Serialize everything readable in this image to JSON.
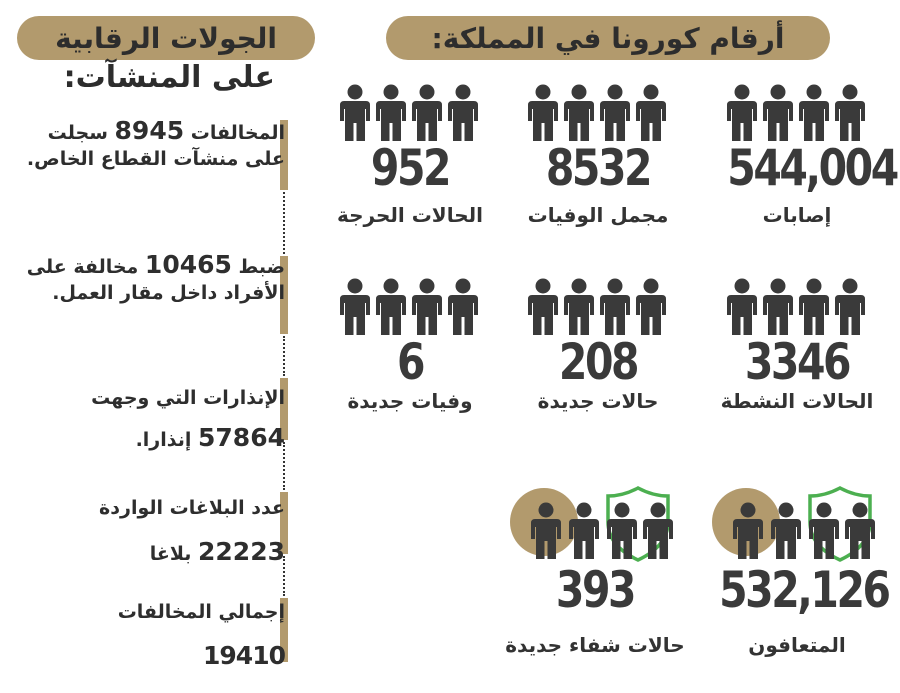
{
  "headers": {
    "right_title": "أرقام كورونا في المملكة:",
    "left_title_line1": "الجولات الرقابية",
    "left_title_line2": "على المنشآت:"
  },
  "stats": [
    {
      "value": "544,004",
      "label": "إصابات"
    },
    {
      "value": "8532",
      "label": "مجمل الوفيات"
    },
    {
      "value": "952",
      "label": "الحالات الحرجة"
    },
    {
      "value": "3346",
      "label": "الحالات النشطة"
    },
    {
      "value": "208",
      "label": "حالات جديدة"
    },
    {
      "value": "6",
      "label": "وفيات جديدة"
    },
    {
      "value": "532,126",
      "label": "المتعافون"
    },
    {
      "value": "393",
      "label": "حالات شفاء جديدة"
    }
  ],
  "inspections": [
    {
      "pre": "المخالفات",
      "num": "8945",
      "post": "سجلت على منشآت القطاع الخاص."
    },
    {
      "pre": "ضبط",
      "num": "10465",
      "post": "مخالفة على الأفراد داخل مقار العمل."
    },
    {
      "pre": "الإنذارات التي وجهت",
      "num": "57864",
      "post": "إنذارا."
    },
    {
      "pre": "عدد البلاغات الواردة",
      "num": "22223",
      "post": "بلاغا"
    },
    {
      "pre": "إجمالي المخالفات",
      "num": "19410",
      "post": ""
    }
  ],
  "colors": {
    "gold": "#b29a6d",
    "dark": "#3a3a3a",
    "green": "#4caf50"
  },
  "icons": [
    "person-icon",
    "shield-icon"
  ]
}
